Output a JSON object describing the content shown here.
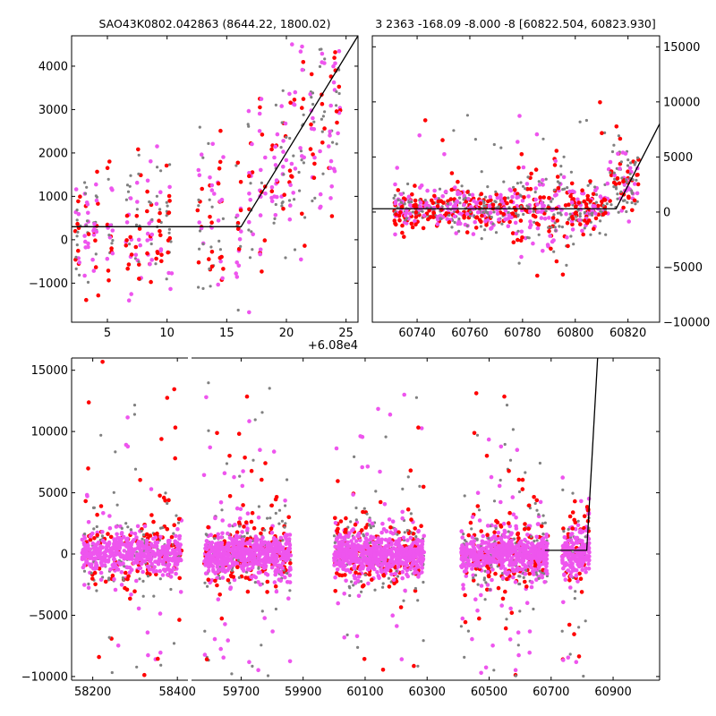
{
  "chart_data": [
    {
      "id": "zoom_left",
      "type": "scatter",
      "title": "SAO43K0802.042863 (8644.22, 1800.02)",
      "x_offset_label": "+6.08e4",
      "xlim": [
        2,
        26
      ],
      "ylim": [
        -1900,
        4700
      ],
      "xticks": [
        5,
        10,
        15,
        20,
        25
      ],
      "yticks": [
        -1000,
        0,
        1000,
        2000,
        3000,
        4000
      ],
      "xtick_labels": [
        "5",
        "10",
        "15",
        "20",
        "25"
      ],
      "ytick_labels": [
        "−1000",
        "0",
        "1000",
        "2000",
        "3000",
        "4000"
      ],
      "model_line": {
        "x": [
          2,
          16.2,
          26
        ],
        "y": [
          300,
          300,
          4700
        ]
      },
      "series_seed_bands": [
        {
          "color": "#808080",
          "name": "gray"
        },
        {
          "color": "#ff0000",
          "name": "red"
        },
        {
          "color": "#ee55ee",
          "name": "magenta"
        }
      ]
    },
    {
      "id": "zoom_right",
      "type": "scatter",
      "title": "3 2363 -168.09 -8.000 -8 [60822.504, 60823.930]",
      "xlim": [
        60723,
        60832
      ],
      "ylim": [
        -10000,
        16000
      ],
      "xticks": [
        60740,
        60760,
        60780,
        60800,
        60820
      ],
      "yticks": [
        -10000,
        -5000,
        0,
        5000,
        10000,
        15000
      ],
      "xtick_labels": [
        "60740",
        "60760",
        "60780",
        "60800",
        "60820"
      ],
      "ytick_labels": [
        "−10000",
        "−5000",
        "0",
        "5000",
        "10000",
        "15000"
      ],
      "yaxis_side": "right",
      "model_line": {
        "x": [
          60723,
          60815.5,
          60832
        ],
        "y": [
          300,
          300,
          8000
        ]
      }
    },
    {
      "id": "full_lightcurve",
      "type": "scatter",
      "broken_x_axis": true,
      "segments": [
        {
          "xlim": [
            58150,
            58425
          ],
          "xticks": [
            58200,
            58400
          ],
          "xtick_labels": [
            "58200",
            "58400"
          ]
        },
        {
          "xlim": [
            59540,
            61050
          ],
          "xticks": [
            59700,
            59900,
            60100,
            60300,
            60500,
            60700,
            60900
          ],
          "xtick_labels": [
            "59700",
            "59900",
            "60100",
            "60300",
            "60500",
            "60700",
            "60900"
          ]
        }
      ],
      "ylim": [
        -10300,
        16000
      ],
      "yticks": [
        -10000,
        -5000,
        0,
        5000,
        10000,
        15000
      ],
      "ytick_labels": [
        "−10000",
        "−5000",
        "0",
        "5000",
        "10000",
        "15000"
      ],
      "observing_seasons": [
        {
          "x0": 58175,
          "x1": 58410,
          "peak": 16000
        },
        {
          "x0": 59580,
          "x1": 59860,
          "peak": 16000
        },
        {
          "x0": 60000,
          "x1": 60290,
          "peak": 16000
        },
        {
          "x0": 60410,
          "x1": 60690,
          "peak": 16000
        },
        {
          "x0": 60735,
          "x1": 60823,
          "peak": 7500
        }
      ],
      "model_line": {
        "x": [
          60680,
          60815,
          60850
        ],
        "y": [
          300,
          300,
          16000
        ]
      }
    }
  ],
  "colors": {
    "gray": "#808080",
    "red": "#ff0000",
    "magenta": "#ee55ee",
    "line": "#000000"
  }
}
